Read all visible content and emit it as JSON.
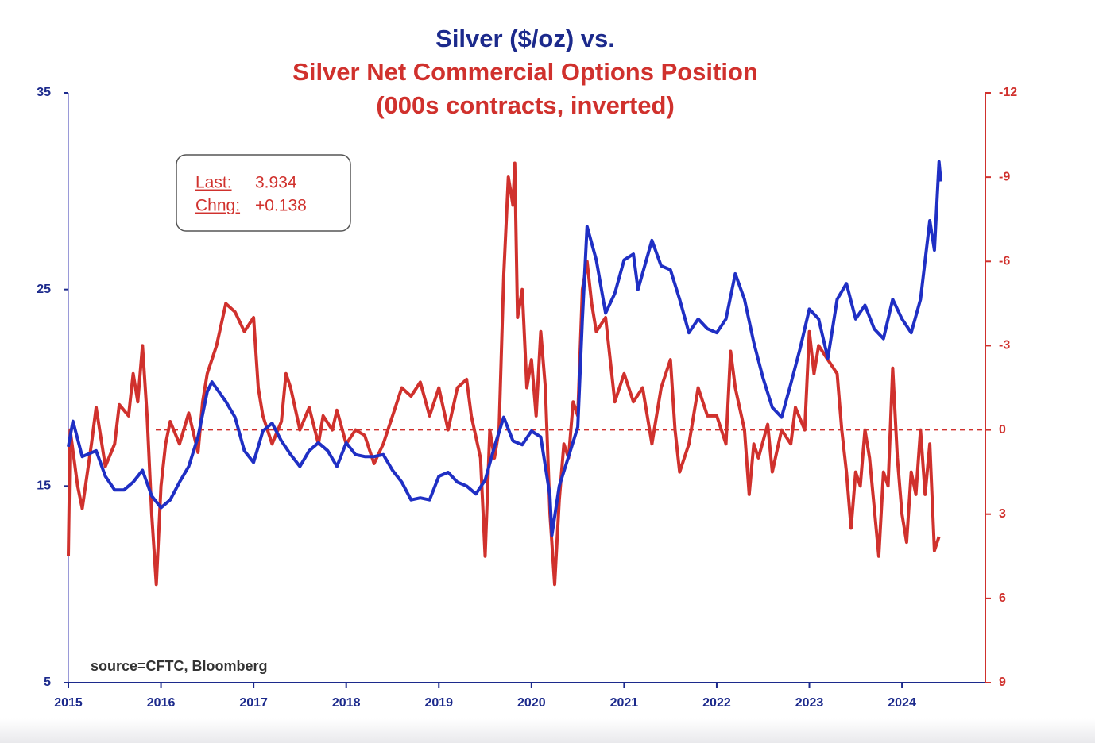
{
  "chart_data": {
    "type": "line",
    "title": [
      "Silver ($/oz) vs.",
      "Silver Net Commercial Options Position",
      "(000s contracts, inverted)"
    ],
    "title_colors": [
      "#1c2a8c",
      "#d0312d",
      "#d0312d"
    ],
    "source": "source=CFTC, Bloomberg",
    "annotation": {
      "last_label": "Last:",
      "last_value": "3.934",
      "change_label": "Chng:",
      "change_value": "+0.138"
    },
    "xlim": [
      2015,
      2024.9
    ],
    "xticks": [
      2015,
      2016,
      2017,
      2018,
      2019,
      2020,
      2021,
      2022,
      2023,
      2024
    ],
    "ylim": [
      5,
      35
    ],
    "yticks": [
      5,
      15,
      25,
      35
    ],
    "y2lim": [
      -12,
      9
    ],
    "y2ticks": [
      -12,
      -9,
      -6,
      -3,
      0,
      3,
      6,
      9
    ],
    "y2_inverted": true,
    "y2_reference_line": 0,
    "series": [
      {
        "name": "Silver ($/oz)",
        "color": "#1f2fc4",
        "axis": "y",
        "x": [
          2015.0,
          2015.05,
          2015.15,
          2015.3,
          2015.4,
          2015.5,
          2015.6,
          2015.7,
          2015.8,
          2015.9,
          2016.0,
          2016.1,
          2016.2,
          2016.3,
          2016.4,
          2016.5,
          2016.55,
          2016.7,
          2016.8,
          2016.9,
          2017.0,
          2017.1,
          2017.2,
          2017.3,
          2017.4,
          2017.5,
          2017.6,
          2017.7,
          2017.8,
          2017.9,
          2018.0,
          2018.1,
          2018.2,
          2018.3,
          2018.4,
          2018.5,
          2018.6,
          2018.7,
          2018.8,
          2018.9,
          2019.0,
          2019.1,
          2019.2,
          2019.3,
          2019.4,
          2019.5,
          2019.6,
          2019.7,
          2019.8,
          2019.9,
          2020.0,
          2020.1,
          2020.2,
          2020.22,
          2020.3,
          2020.4,
          2020.5,
          2020.55,
          2020.6,
          2020.7,
          2020.8,
          2020.9,
          2021.0,
          2021.1,
          2021.15,
          2021.3,
          2021.4,
          2021.5,
          2021.6,
          2021.7,
          2021.8,
          2021.9,
          2022.0,
          2022.1,
          2022.2,
          2022.3,
          2022.4,
          2022.5,
          2022.6,
          2022.7,
          2022.8,
          2022.9,
          2023.0,
          2023.1,
          2023.2,
          2023.3,
          2023.4,
          2023.5,
          2023.6,
          2023.7,
          2023.8,
          2023.9,
          2024.0,
          2024.1,
          2024.2,
          2024.3,
          2024.35,
          2024.4,
          2024.42
        ],
        "values": [
          17,
          18.3,
          16.5,
          16.8,
          15.5,
          14.8,
          14.8,
          15.2,
          15.8,
          14.5,
          13.9,
          14.3,
          15.2,
          16.0,
          17.5,
          19.8,
          20.3,
          19.3,
          18.5,
          16.8,
          16.2,
          17.8,
          18.2,
          17.3,
          16.6,
          16.0,
          16.8,
          17.2,
          16.8,
          16.0,
          17.2,
          16.6,
          16.5,
          16.5,
          16.6,
          15.8,
          15.2,
          14.3,
          14.4,
          14.3,
          15.5,
          15.7,
          15.2,
          15.0,
          14.6,
          15.3,
          17.0,
          18.5,
          17.3,
          17.1,
          17.8,
          17.5,
          14.5,
          12.5,
          15.0,
          16.5,
          18.0,
          23.5,
          28.2,
          26.5,
          23.8,
          24.8,
          26.5,
          26.8,
          25.0,
          27.5,
          26.2,
          26.0,
          24.5,
          22.8,
          23.5,
          23.0,
          22.8,
          23.5,
          25.8,
          24.5,
          22.3,
          20.5,
          19.0,
          18.5,
          20.2,
          22.0,
          24.0,
          23.5,
          21.5,
          24.5,
          25.3,
          23.5,
          24.2,
          23.0,
          22.5,
          24.5,
          23.5,
          22.8,
          24.5,
          28.5,
          27.0,
          31.5,
          30.5
        ]
      },
      {
        "name": "Silver Net Commercial Options Position",
        "color": "#d0312d",
        "axis": "y2",
        "x": [
          2015.0,
          2015.02,
          2015.1,
          2015.15,
          2015.25,
          2015.3,
          2015.4,
          2015.5,
          2015.55,
          2015.65,
          2015.7,
          2015.75,
          2015.8,
          2015.85,
          2015.9,
          2015.95,
          2016.0,
          2016.05,
          2016.1,
          2016.2,
          2016.3,
          2016.4,
          2016.45,
          2016.5,
          2016.6,
          2016.7,
          2016.8,
          2016.9,
          2017.0,
          2017.05,
          2017.1,
          2017.2,
          2017.3,
          2017.35,
          2017.4,
          2017.5,
          2017.6,
          2017.7,
          2017.75,
          2017.85,
          2017.9,
          2018.0,
          2018.1,
          2018.2,
          2018.3,
          2018.4,
          2018.5,
          2018.6,
          2018.7,
          2018.8,
          2018.9,
          2019.0,
          2019.1,
          2019.2,
          2019.3,
          2019.35,
          2019.45,
          2019.5,
          2019.55,
          2019.6,
          2019.65,
          2019.7,
          2019.75,
          2019.8,
          2019.82,
          2019.85,
          2019.9,
          2019.95,
          2020.0,
          2020.05,
          2020.1,
          2020.15,
          2020.2,
          2020.25,
          2020.3,
          2020.35,
          2020.4,
          2020.45,
          2020.5,
          2020.55,
          2020.6,
          2020.65,
          2020.7,
          2020.8,
          2020.85,
          2020.9,
          2021.0,
          2021.1,
          2021.2,
          2021.3,
          2021.4,
          2021.5,
          2021.55,
          2021.6,
          2021.7,
          2021.8,
          2021.9,
          2022.0,
          2022.1,
          2022.15,
          2022.2,
          2022.3,
          2022.35,
          2022.4,
          2022.45,
          2022.55,
          2022.6,
          2022.7,
          2022.8,
          2022.85,
          2022.95,
          2023.0,
          2023.05,
          2023.1,
          2023.2,
          2023.3,
          2023.35,
          2023.4,
          2023.45,
          2023.5,
          2023.55,
          2023.6,
          2023.65,
          2023.75,
          2023.8,
          2023.85,
          2023.9,
          2023.95,
          2024.0,
          2024.05,
          2024.1,
          2024.15,
          2024.2,
          2024.25,
          2024.3,
          2024.35,
          2024.4
        ],
        "values": [
          4.5,
          0,
          2.0,
          2.8,
          0.5,
          -0.8,
          1.3,
          0.5,
          -0.9,
          -0.5,
          -2.0,
          -1.0,
          -3.0,
          -0.5,
          3.0,
          5.5,
          2.0,
          0.5,
          -0.3,
          0.5,
          -0.6,
          0.8,
          -1.0,
          -2.0,
          -3.0,
          -4.5,
          -4.2,
          -3.5,
          -4.0,
          -1.5,
          -0.5,
          0.5,
          -0.3,
          -2.0,
          -1.5,
          0.0,
          -0.8,
          0.5,
          -0.5,
          0.0,
          -0.7,
          0.5,
          0.0,
          0.2,
          1.2,
          0.5,
          -0.5,
          -1.5,
          -1.2,
          -1.7,
          -0.5,
          -1.5,
          0.0,
          -1.5,
          -1.8,
          -0.5,
          1.0,
          4.5,
          0.0,
          1.0,
          0.0,
          -5.5,
          -9.0,
          -8.0,
          -9.5,
          -4.0,
          -5.0,
          -1.5,
          -2.5,
          -0.5,
          -3.5,
          -1.5,
          3.0,
          5.5,
          2.5,
          0.5,
          1.0,
          -1.0,
          -0.5,
          -5.0,
          -6.0,
          -4.5,
          -3.5,
          -4.0,
          -2.5,
          -1.0,
          -2.0,
          -1.0,
          -1.5,
          0.5,
          -1.5,
          -2.5,
          0.0,
          1.5,
          0.5,
          -1.5,
          -0.5,
          -0.5,
          0.5,
          -2.8,
          -1.5,
          0.0,
          2.3,
          0.5,
          1.0,
          -0.2,
          1.5,
          0.0,
          0.5,
          -0.8,
          0.0,
          -3.5,
          -2.0,
          -3.0,
          -2.5,
          -2.0,
          0.0,
          1.5,
          3.5,
          1.5,
          2.0,
          0.0,
          1.0,
          4.5,
          1.5,
          2.0,
          -2.2,
          1.0,
          3.0,
          4.0,
          1.5,
          2.3,
          0.0,
          2.3,
          0.5,
          4.3,
          3.8
        ]
      }
    ]
  }
}
